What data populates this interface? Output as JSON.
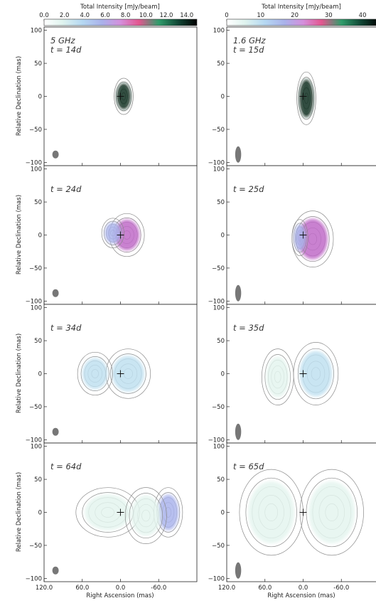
{
  "chart_data": {
    "type": "heatmap",
    "xlabel": "Right Ascension (mas)",
    "ylabel": "Relative Declination (mas)",
    "xlim": [
      120,
      -120
    ],
    "ylim": [
      -105,
      105
    ],
    "xticks": [
      "120.0",
      "60.0",
      "0.0",
      "-60.0"
    ],
    "yticks": [
      "100",
      "50",
      "0",
      "−50",
      "−100"
    ],
    "colorbars": [
      {
        "label": "Total Intensity [mJy/beam]",
        "min": 0,
        "max": 15,
        "ticks": [
          "0.0",
          "2.0",
          "4.0",
          "6.0",
          "8.0",
          "10.0",
          "12.0",
          "14.0"
        ]
      },
      {
        "label": "Total Intensity [mJy/beam]",
        "min": 0,
        "max": 45,
        "ticks": [
          "0",
          "10",
          "20",
          "30",
          "40"
        ]
      }
    ],
    "columns": [
      {
        "freq": "5 GHz",
        "epochs": [
          "t = 14d",
          "t = 24d",
          "t = 34d",
          "t = 64d"
        ]
      },
      {
        "freq": "1.6 GHz",
        "epochs": [
          "t = 15d",
          "t = 25d",
          "t = 35d",
          "t = 65d"
        ]
      }
    ]
  }
}
